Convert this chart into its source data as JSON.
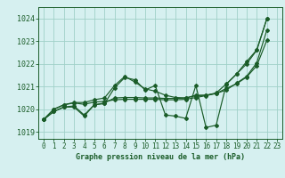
{
  "title": "Graphe pression niveau de la mer (hPa)",
  "background_color": "#d6f0f0",
  "grid_color": "#a0d0c8",
  "line_color": "#1a5c28",
  "xlim": [
    -0.5,
    23.5
  ],
  "ylim": [
    1018.7,
    1024.5
  ],
  "yticks": [
    1019,
    1020,
    1021,
    1022,
    1023,
    1024
  ],
  "xticks": [
    0,
    1,
    2,
    3,
    4,
    5,
    6,
    7,
    8,
    9,
    10,
    11,
    12,
    13,
    14,
    15,
    16,
    17,
    18,
    19,
    20,
    21,
    22,
    23
  ],
  "series": [
    {
      "x": [
        0,
        1,
        2,
        3,
        4,
        5,
        6,
        7,
        8,
        9,
        10,
        11,
        12,
        13,
        14,
        15,
        16,
        17,
        18,
        19,
        20,
        21,
        22
      ],
      "y": [
        1019.55,
        1019.9,
        1020.1,
        1020.1,
        1019.7,
        1020.2,
        1020.25,
        1020.95,
        1021.4,
        1021.3,
        1020.85,
        1021.05,
        1019.75,
        1019.7,
        1019.6,
        1021.05,
        1019.2,
        1019.3,
        1021.1,
        1021.55,
        1022.0,
        1022.6,
        1024.0
      ]
    },
    {
      "x": [
        0,
        1,
        2,
        3,
        4,
        5,
        6,
        7,
        8,
        9,
        10,
        11,
        12,
        13,
        14,
        15,
        16,
        17,
        18,
        19,
        20,
        21,
        22
      ],
      "y": [
        1019.55,
        1019.9,
        1020.1,
        1020.15,
        1019.75,
        1020.2,
        1020.28,
        1020.5,
        1020.52,
        1020.52,
        1020.5,
        1020.5,
        1020.48,
        1020.48,
        1020.5,
        1020.6,
        1020.62,
        1020.7,
        1020.85,
        1021.15,
        1021.45,
        1022.05,
        1023.5
      ]
    },
    {
      "x": [
        0,
        1,
        2,
        3,
        4,
        5,
        6,
        7,
        8,
        9,
        10,
        11,
        12,
        13,
        14,
        15,
        16,
        17,
        18,
        19,
        20,
        21,
        22
      ],
      "y": [
        1019.55,
        1020.0,
        1020.2,
        1020.3,
        1020.3,
        1020.42,
        1020.5,
        1021.05,
        1021.45,
        1021.2,
        1020.9,
        1020.8,
        1020.62,
        1020.52,
        1020.5,
        1020.62,
        1020.62,
        1020.72,
        1021.12,
        1021.55,
        1022.1,
        1022.62,
        1024.0
      ]
    },
    {
      "x": [
        0,
        1,
        2,
        3,
        4,
        5,
        6,
        7,
        8,
        9,
        10,
        11,
        12,
        13,
        14,
        15,
        16,
        17,
        18,
        19,
        20,
        21,
        22
      ],
      "y": [
        1019.55,
        1020.0,
        1020.2,
        1020.28,
        1020.22,
        1020.32,
        1020.35,
        1020.42,
        1020.44,
        1020.44,
        1020.44,
        1020.44,
        1020.42,
        1020.42,
        1020.44,
        1020.52,
        1020.6,
        1020.7,
        1020.92,
        1021.12,
        1021.42,
        1021.92,
        1023.05
      ]
    }
  ]
}
